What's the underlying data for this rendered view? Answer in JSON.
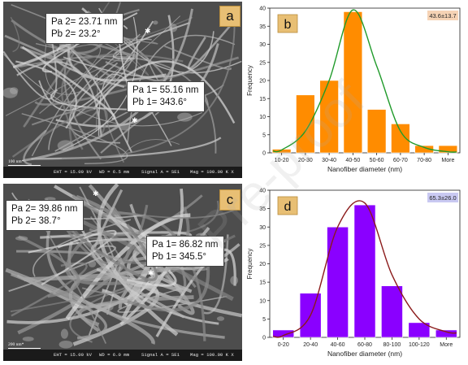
{
  "panel_a": {
    "letter": "a",
    "annotation_top": [
      "Pa 2= 23.71 nm",
      "Pb 2= 23.2°"
    ],
    "annotation_bottom": [
      "Pa 1= 55.16 nm",
      "Pb 1= 343.6°"
    ],
    "scale_label": "100 nm*",
    "footer": {
      "eht": "EHT = 15.00 kV",
      "wd": "WD = 6.5 mm",
      "signal": "Signal A = SE1",
      "mag": "Mag = 100.00 K X"
    }
  },
  "panel_c": {
    "letter": "c",
    "annotation_top": [
      "Pa 2= 39.86 nm",
      "Pb 2= 38.7°"
    ],
    "annotation_bottom": [
      "Pa 1= 86.82 nm",
      "Pb 1= 345.5°"
    ],
    "scale_label": "200 nm*",
    "footer": {
      "eht": "EHT = 15.00 kV",
      "wd": "WD = 6.0 mm",
      "signal": "Signal A = SE1",
      "mag": "Mag = 100.00 K X"
    }
  },
  "watermark": "Pre-proof",
  "chart_data": [
    {
      "type": "bar",
      "panel_letter": "b",
      "stat_label": "43.6±13.7",
      "categories": [
        "10-20",
        "20-30",
        "30-40",
        "40-50",
        "50-60",
        "60-70",
        "70-80",
        "More"
      ],
      "values": [
        1,
        16,
        20,
        39,
        12,
        8,
        2,
        2
      ],
      "fit_curve": [
        0.8,
        6,
        20,
        39.5,
        24,
        6,
        1.5,
        0.3
      ],
      "xlabel": "Nanofiber diameter (nm)",
      "ylabel": "Frequency",
      "ylim": [
        0,
        40
      ],
      "yticks": [
        0,
        5,
        10,
        15,
        20,
        25,
        30,
        35,
        40
      ],
      "bar_color": "#ff8c00",
      "curve_color": "#1f9a2a",
      "badge_color": "#f6d3b5"
    },
    {
      "type": "bar",
      "panel_letter": "d",
      "stat_label": "65.3±26.0",
      "categories": [
        "0-20",
        "20-40",
        "40-60",
        "60-80",
        "80-100",
        "100-120",
        "More"
      ],
      "values": [
        2,
        12,
        30,
        36,
        14,
        4,
        2
      ],
      "fit_curve": [
        0.5,
        6,
        30,
        36.5,
        17,
        5,
        1.5
      ],
      "xlabel": "Nanofiber diameter (nm)",
      "ylabel": "Frequency",
      "ylim": [
        0,
        40
      ],
      "yticks": [
        0,
        5,
        10,
        15,
        20,
        25,
        30,
        35,
        40
      ],
      "bar_color": "#8a00ff",
      "curve_color": "#8b1a1a",
      "badge_color": "#c9c9f2"
    }
  ]
}
